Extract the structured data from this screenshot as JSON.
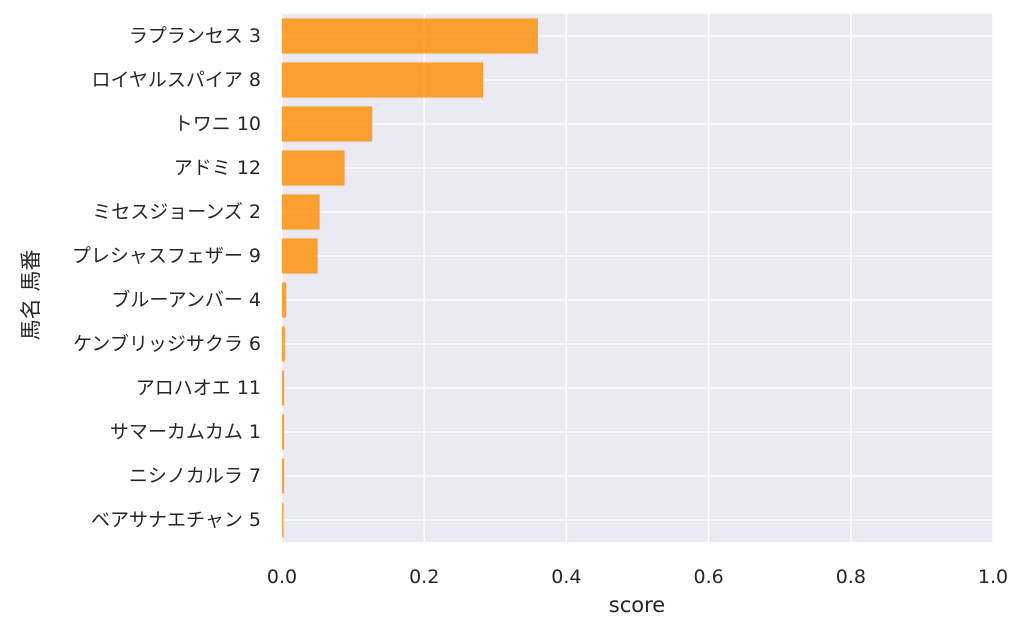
{
  "chart_data": {
    "type": "bar",
    "orientation": "horizontal",
    "categories": [
      "ラプランセス 3",
      "ロイヤルスパイア 8",
      "トワニ 10",
      "アドミ 12",
      "ミセスジョーンズ 2",
      "プレシャスフェザー 9",
      "ブルーアンバー 4",
      "ケンブリッジサクラ 6",
      "アロハオエ 11",
      "サマーカムカム 1",
      "ニシノカルラ 7",
      "ベアサナエチャン 5"
    ],
    "values": [
      0.36,
      0.283,
      0.127,
      0.088,
      0.053,
      0.05,
      0.006,
      0.004,
      0.003,
      0.003,
      0.003,
      0.002
    ],
    "xlabel": "score",
    "ylabel": "馬名 馬番",
    "xlim": [
      0.0,
      1.0
    ],
    "xticks": [
      "0.0",
      "0.2",
      "0.4",
      "0.6",
      "0.8",
      "1.0"
    ],
    "grid": true,
    "colors": {
      "bar": "#ff8c00",
      "plot_background": "#eaeaf2",
      "grid": "#ffffff",
      "text": "#262626"
    }
  }
}
